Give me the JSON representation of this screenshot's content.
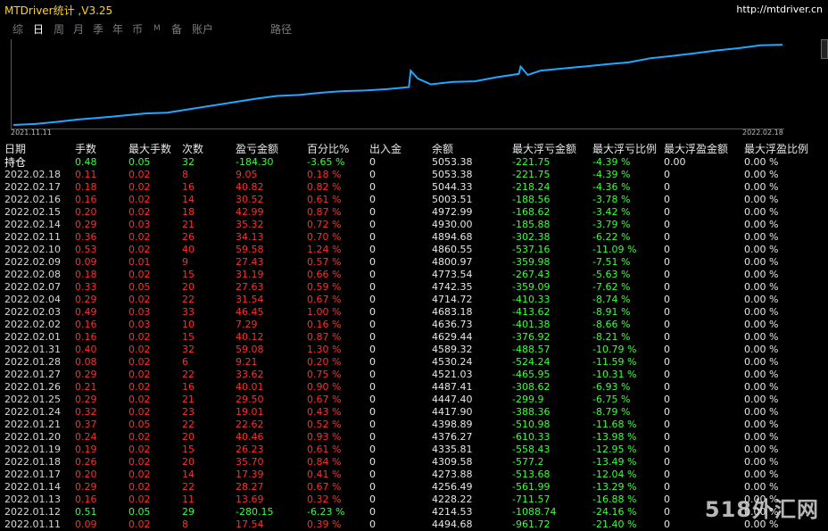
{
  "window": {
    "title": "MTDriver统计 ,V3.25",
    "url": "http://mtdriver.cn"
  },
  "tabs": [
    {
      "label": "综",
      "active": false
    },
    {
      "label": "日",
      "active": true
    },
    {
      "label": "周",
      "active": false
    },
    {
      "label": "月",
      "active": false
    },
    {
      "label": "季",
      "active": false
    },
    {
      "label": "年",
      "active": false
    },
    {
      "label": "币",
      "active": false
    },
    {
      "label": "M",
      "active": false
    },
    {
      "label": "备",
      "active": false
    },
    {
      "label": "账户",
      "active": false
    },
    {
      "label": "路径",
      "active": false
    }
  ],
  "chart_data": {
    "type": "line",
    "x_start_label": "2021.11.11",
    "x_end_label": "2022.02.18",
    "line_color": "#1fa8ff",
    "values": [
      3905,
      3920,
      3950,
      3985,
      4010,
      4040,
      4070,
      4080,
      4130,
      4180,
      4230,
      4280,
      4320,
      4335,
      4366,
      4389,
      4398,
      4417,
      4447,
      4487,
      4521,
      4530,
      4589,
      4636,
      4683,
      4714,
      4742,
      4773,
      4800,
      4860,
      4894,
      4930,
      4972,
      5003,
      5044,
      5053
    ],
    "drop_points": [
      {
        "before": 4680,
        "after": 4570,
        "index": 18
      },
      {
        "before": 4740,
        "after": 4620,
        "index": 23
      }
    ]
  },
  "table": {
    "columns": [
      "日期",
      "手数",
      "最大手数",
      "次数",
      "盈亏金额",
      "百分比%",
      "出入金",
      "余额",
      "最大浮亏金额",
      "最大浮亏比例",
      "最大浮盈金额",
      "最大浮盈比例"
    ],
    "hold_row": [
      "持仓",
      "0.48",
      "0.05",
      "32",
      "-184.30",
      "-3.65 %",
      "0",
      "5053.38",
      "-221.75",
      "-4.39 %",
      "0.00",
      "0.00 %"
    ],
    "rows": [
      [
        "2022.02.18",
        "0.11",
        "0.02",
        "8",
        "9.05",
        "0.18 %",
        "0",
        "5053.38",
        "-221.75",
        "-4.39 %",
        "0",
        "0.00 %"
      ],
      [
        "2022.02.17",
        "0.18",
        "0.02",
        "16",
        "40.82",
        "0.82 %",
        "0",
        "5044.33",
        "-218.24",
        "-4.36 %",
        "0",
        "0.00 %"
      ],
      [
        "2022.02.16",
        "0.16",
        "0.02",
        "14",
        "30.52",
        "0.61 %",
        "0",
        "5003.51",
        "-188.56",
        "-3.78 %",
        "0",
        "0.00 %"
      ],
      [
        "2022.02.15",
        "0.20",
        "0.02",
        "18",
        "42.99",
        "0.87 %",
        "0",
        "4972.99",
        "-168.62",
        "-3.42 %",
        "0",
        "0.00 %"
      ],
      [
        "2022.02.14",
        "0.29",
        "0.03",
        "21",
        "35.32",
        "0.72 %",
        "0",
        "4930.00",
        "-185.88",
        "-3.79 %",
        "0",
        "0.00 %"
      ],
      [
        "2022.02.11",
        "0.36",
        "0.02",
        "26",
        "34.13",
        "0.70 %",
        "0",
        "4894.68",
        "-302.38",
        "-6.22 %",
        "0",
        "0.00 %"
      ],
      [
        "2022.02.10",
        "0.53",
        "0.02",
        "40",
        "59.58",
        "1.24 %",
        "0",
        "4860.55",
        "-537.16",
        "-11.09 %",
        "0",
        "0.00 %"
      ],
      [
        "2022.02.09",
        "0.09",
        "0.01",
        "9",
        "27.43",
        "0.57 %",
        "0",
        "4800.97",
        "-359.98",
        "-7.51 %",
        "0",
        "0.00 %"
      ],
      [
        "2022.02.08",
        "0.18",
        "0.02",
        "15",
        "31.19",
        "0.66 %",
        "0",
        "4773.54",
        "-267.43",
        "-5.63 %",
        "0",
        "0.00 %"
      ],
      [
        "2022.02.07",
        "0.33",
        "0.05",
        "20",
        "27.63",
        "0.59 %",
        "0",
        "4742.35",
        "-359.09",
        "-7.62 %",
        "0",
        "0.00 %"
      ],
      [
        "2022.02.04",
        "0.29",
        "0.02",
        "22",
        "31.54",
        "0.67 %",
        "0",
        "4714.72",
        "-410.33",
        "-8.74 %",
        "0",
        "0.00 %"
      ],
      [
        "2022.02.03",
        "0.49",
        "0.03",
        "33",
        "46.45",
        "1.00 %",
        "0",
        "4683.18",
        "-413.62",
        "-8.91 %",
        "0",
        "0.00 %"
      ],
      [
        "2022.02.02",
        "0.16",
        "0.03",
        "10",
        "7.29",
        "0.16 %",
        "0",
        "4636.73",
        "-401.38",
        "-8.66 %",
        "0",
        "0.00 %"
      ],
      [
        "2022.02.01",
        "0.16",
        "0.02",
        "15",
        "40.12",
        "0.87 %",
        "0",
        "4629.44",
        "-376.92",
        "-8.21 %",
        "0",
        "0.00 %"
      ],
      [
        "2022.01.31",
        "0.40",
        "0.02",
        "32",
        "59.08",
        "1.30 %",
        "0",
        "4589.32",
        "-488.57",
        "-10.79 %",
        "0",
        "0.00 %"
      ],
      [
        "2022.01.28",
        "0.08",
        "0.02",
        "6",
        "9.21",
        "0.20 %",
        "0",
        "4530.24",
        "-524.24",
        "-11.59 %",
        "0",
        "0.00 %"
      ],
      [
        "2022.01.27",
        "0.29",
        "0.02",
        "22",
        "33.62",
        "0.75 %",
        "0",
        "4521.03",
        "-465.95",
        "-10.31 %",
        "0",
        "0.00 %"
      ],
      [
        "2022.01.26",
        "0.21",
        "0.02",
        "16",
        "40.01",
        "0.90 %",
        "0",
        "4487.41",
        "-308.62",
        "-6.93 %",
        "0",
        "0.00 %"
      ],
      [
        "2022.01.25",
        "0.29",
        "0.02",
        "21",
        "29.50",
        "0.67 %",
        "0",
        "4447.40",
        "-299.9",
        "-6.75 %",
        "0",
        "0.00 %"
      ],
      [
        "2022.01.24",
        "0.32",
        "0.02",
        "23",
        "19.01",
        "0.43 %",
        "0",
        "4417.90",
        "-388.36",
        "-8.79 %",
        "0",
        "0.00 %"
      ],
      [
        "2022.01.21",
        "0.37",
        "0.05",
        "22",
        "22.62",
        "0.52 %",
        "0",
        "4398.89",
        "-510.98",
        "-11.68 %",
        "0",
        "0.00 %"
      ],
      [
        "2022.01.20",
        "0.24",
        "0.02",
        "20",
        "40.46",
        "0.93 %",
        "0",
        "4376.27",
        "-610.33",
        "-13.98 %",
        "0",
        "0.00 %"
      ],
      [
        "2022.01.19",
        "0.19",
        "0.02",
        "15",
        "26.23",
        "0.61 %",
        "0",
        "4335.81",
        "-558.43",
        "-12.95 %",
        "0",
        "0.00 %"
      ],
      [
        "2022.01.18",
        "0.26",
        "0.02",
        "20",
        "35.70",
        "0.84 %",
        "0",
        "4309.58",
        "-577.2",
        "-13.49 %",
        "0",
        "0.00 %"
      ],
      [
        "2022.01.17",
        "0.20",
        "0.02",
        "14",
        "17.39",
        "0.41 %",
        "0",
        "4273.88",
        "-513.68",
        "-12.04 %",
        "0",
        "0.00 %"
      ],
      [
        "2022.01.14",
        "0.29",
        "0.02",
        "22",
        "28.27",
        "0.67 %",
        "0",
        "4256.49",
        "-561.99",
        "-13.29 %",
        "0",
        "0.00 %"
      ],
      [
        "2022.01.13",
        "0.16",
        "0.02",
        "11",
        "13.69",
        "0.32 %",
        "0",
        "4228.22",
        "-711.57",
        "-16.88 %",
        "0",
        "0.00 %"
      ],
      [
        "2022.01.12",
        "0.51",
        "0.05",
        "29",
        "-280.15",
        "-6.23 %",
        "0",
        "4214.53",
        "-1088.74",
        "-24.16 %",
        "0",
        "0.00 %"
      ],
      [
        "2022.01.11",
        "0.09",
        "0.02",
        "8",
        "17.54",
        "0.39 %",
        "0",
        "4494.68",
        "-961.72",
        "-21.40 %",
        "0",
        "0.00 %"
      ]
    ]
  },
  "watermark": "518外汇网"
}
